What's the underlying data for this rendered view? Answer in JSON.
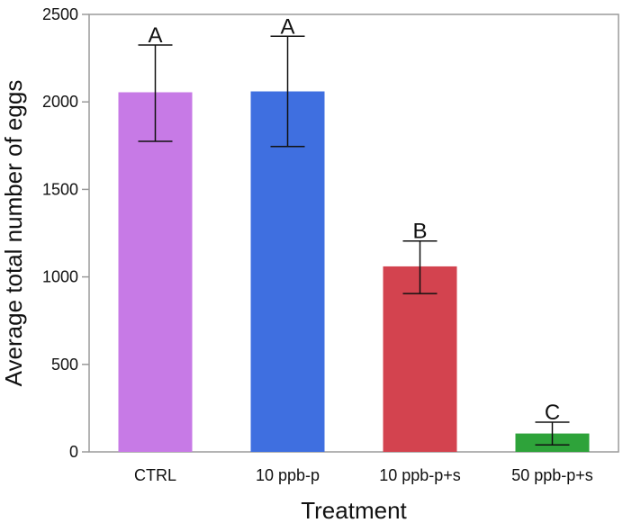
{
  "chart_data": {
    "type": "bar",
    "title": "",
    "xlabel": "Treatment",
    "ylabel": "Average total number of eggs",
    "ylim": [
      0,
      2500
    ],
    "yticks": [
      0,
      500,
      1000,
      1500,
      2000,
      2500
    ],
    "grid": false,
    "categories": [
      "CTRL",
      "10 ppb-p",
      "10 ppb-p+s",
      "50 ppb-p+s"
    ],
    "values": [
      2055,
      2060,
      1060,
      105
    ],
    "error_low": [
      1775,
      1745,
      905,
      40
    ],
    "error_high": [
      2325,
      2375,
      1205,
      170
    ],
    "significance_letters": [
      "A",
      "A",
      "B",
      "C"
    ],
    "colors": [
      "#c77ae6",
      "#3f6fe0",
      "#d3434f",
      "#2ea33a"
    ]
  }
}
